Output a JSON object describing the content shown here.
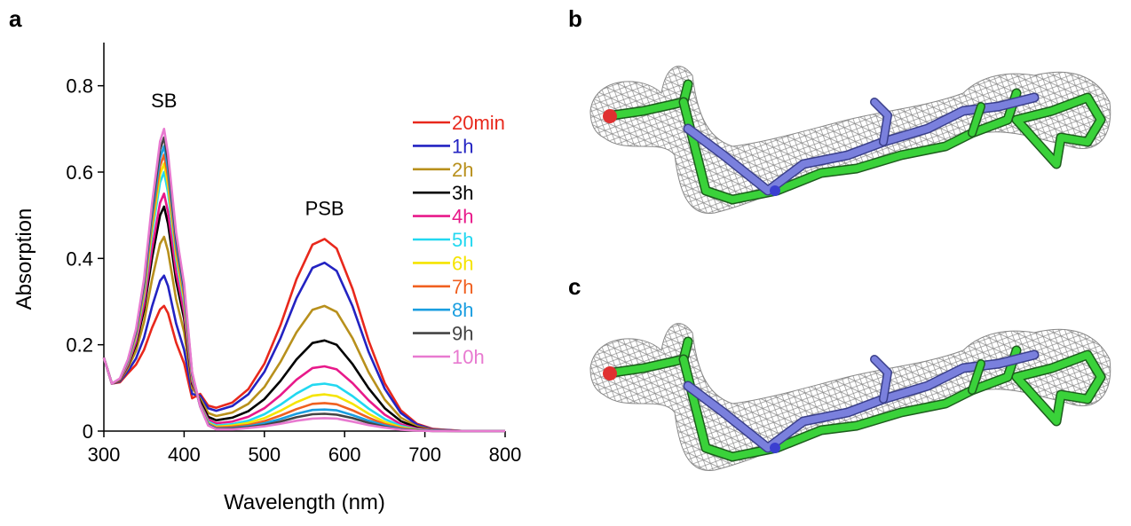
{
  "panels": [
    "a",
    "b",
    "c"
  ],
  "chart_data": {
    "type": "line",
    "x_label": "Wavelength (nm)",
    "y_label": "Absorption",
    "annotations": [
      {
        "text": "SB",
        "x": 375,
        "y": 0.75
      },
      {
        "text": "PSB",
        "x": 575,
        "y": 0.5
      }
    ],
    "xlim": [
      300,
      800
    ],
    "ylim": [
      0,
      0.9
    ],
    "xticks": [
      300,
      400,
      500,
      600,
      700,
      800
    ],
    "yticks": [
      0,
      0.2,
      0.4,
      0.6,
      0.8
    ],
    "grid": false,
    "legend": "right",
    "x": [
      300,
      310,
      320,
      330,
      340,
      350,
      360,
      370,
      375,
      380,
      390,
      400,
      410,
      420,
      430,
      440,
      460,
      480,
      500,
      520,
      540,
      560,
      575,
      590,
      610,
      630,
      650,
      670,
      690,
      710,
      750,
      800
    ],
    "series": [
      {
        "name": "20min",
        "color": "#e8281c",
        "values": [
          0.17,
          0.11,
          0.113,
          0.134,
          0.154,
          0.188,
          0.239,
          0.282,
          0.29,
          0.273,
          0.205,
          0.157,
          0.076,
          0.086,
          0.059,
          0.054,
          0.066,
          0.097,
          0.156,
          0.245,
          0.352,
          0.432,
          0.445,
          0.423,
          0.329,
          0.209,
          0.111,
          0.048,
          0.017,
          0.005,
          0,
          0
        ]
      },
      {
        "name": "1h",
        "color": "#2323c2",
        "values": [
          0.17,
          0.11,
          0.115,
          0.139,
          0.168,
          0.216,
          0.288,
          0.348,
          0.36,
          0.336,
          0.249,
          0.188,
          0.086,
          0.082,
          0.053,
          0.047,
          0.058,
          0.085,
          0.137,
          0.215,
          0.308,
          0.378,
          0.39,
          0.371,
          0.289,
          0.183,
          0.098,
          0.042,
          0.015,
          0.004,
          0,
          0
        ]
      },
      {
        "name": "2h",
        "color": "#b8901c",
        "values": [
          0.17,
          0.11,
          0.117,
          0.146,
          0.186,
          0.252,
          0.351,
          0.434,
          0.45,
          0.417,
          0.305,
          0.229,
          0.1,
          0.075,
          0.042,
          0.035,
          0.043,
          0.063,
          0.102,
          0.16,
          0.229,
          0.281,
          0.29,
          0.276,
          0.215,
          0.136,
          0.073,
          0.031,
          0.011,
          0.003,
          0,
          0
        ]
      },
      {
        "name": "3h",
        "color": "#000000",
        "values": [
          0.17,
          0.11,
          0.118,
          0.152,
          0.2,
          0.28,
          0.4,
          0.5,
          0.52,
          0.48,
          0.348,
          0.26,
          0.11,
          0.069,
          0.033,
          0.025,
          0.031,
          0.046,
          0.074,
          0.116,
          0.166,
          0.204,
          0.21,
          0.2,
          0.155,
          0.099,
          0.053,
          0.023,
          0.008,
          0.002,
          0,
          0
        ]
      },
      {
        "name": "4h",
        "color": "#e8198a",
        "values": [
          0.17,
          0.11,
          0.119,
          0.154,
          0.206,
          0.292,
          0.421,
          0.529,
          0.55,
          0.507,
          0.367,
          0.274,
          0.115,
          0.064,
          0.027,
          0.018,
          0.022,
          0.033,
          0.053,
          0.083,
          0.119,
          0.146,
          0.15,
          0.143,
          0.111,
          0.071,
          0.038,
          0.016,
          0.006,
          0.002,
          0,
          0
        ]
      },
      {
        "name": "5h",
        "color": "#22d8f0",
        "values": [
          0.17,
          0.11,
          0.12,
          0.158,
          0.216,
          0.312,
          0.456,
          0.576,
          0.6,
          0.552,
          0.398,
          0.296,
          0.122,
          0.061,
          0.022,
          0.013,
          0.016,
          0.024,
          0.039,
          0.061,
          0.087,
          0.107,
          0.11,
          0.105,
          0.081,
          0.052,
          0.028,
          0.012,
          0.004,
          0.001,
          0,
          0
        ]
      },
      {
        "name": "6h",
        "color": "#f5e400",
        "values": [
          0.17,
          0.11,
          0.12,
          0.16,
          0.22,
          0.32,
          0.47,
          0.595,
          0.62,
          0.57,
          0.41,
          0.305,
          0.125,
          0.059,
          0.019,
          0.01,
          0.013,
          0.019,
          0.03,
          0.047,
          0.067,
          0.082,
          0.085,
          0.081,
          0.063,
          0.04,
          0.021,
          0.009,
          0.003,
          0.001,
          0,
          0
        ]
      },
      {
        "name": "7h",
        "color": "#f06020",
        "values": [
          0.17,
          0.11,
          0.12,
          0.162,
          0.224,
          0.328,
          0.484,
          0.614,
          0.64,
          0.588,
          0.422,
          0.314,
          0.128,
          0.058,
          0.017,
          0.008,
          0.01,
          0.014,
          0.023,
          0.036,
          0.051,
          0.063,
          0.065,
          0.062,
          0.048,
          0.031,
          0.016,
          0.007,
          0.002,
          0.001,
          0,
          0
        ]
      },
      {
        "name": "8h",
        "color": "#1a9ee0",
        "values": [
          0.17,
          0.11,
          0.121,
          0.163,
          0.228,
          0.336,
          0.498,
          0.633,
          0.66,
          0.606,
          0.435,
          0.323,
          0.131,
          0.057,
          0.016,
          0.006,
          0.007,
          0.011,
          0.018,
          0.028,
          0.04,
          0.049,
          0.05,
          0.048,
          0.037,
          0.024,
          0.013,
          0.005,
          0.002,
          0.001,
          0,
          0
        ]
      },
      {
        "name": "9h",
        "color": "#444444",
        "values": [
          0.17,
          0.11,
          0.121,
          0.165,
          0.232,
          0.344,
          0.512,
          0.652,
          0.68,
          0.624,
          0.447,
          0.332,
          0.134,
          0.057,
          0.014,
          0.005,
          0.006,
          0.009,
          0.014,
          0.022,
          0.032,
          0.039,
          0.04,
          0.038,
          0.03,
          0.019,
          0.01,
          0.004,
          0.002,
          0,
          0,
          0
        ]
      },
      {
        "name": "10h",
        "color": "#e87ad0",
        "values": [
          0.17,
          0.11,
          0.122,
          0.166,
          0.236,
          0.352,
          0.526,
          0.671,
          0.7,
          0.642,
          0.46,
          0.341,
          0.137,
          0.057,
          0.013,
          0.004,
          0.004,
          0.007,
          0.011,
          0.017,
          0.024,
          0.029,
          0.03,
          0.029,
          0.022,
          0.014,
          0.008,
          0.003,
          0.001,
          0,
          0,
          0
        ]
      }
    ]
  }
}
